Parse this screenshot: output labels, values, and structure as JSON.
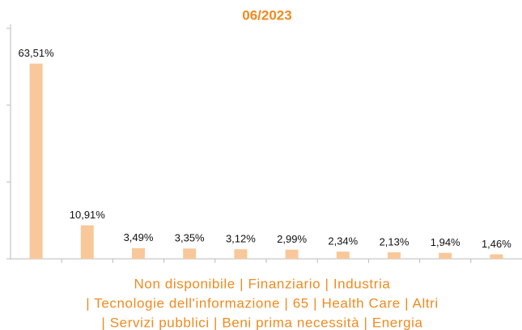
{
  "chart_data": {
    "type": "bar",
    "title": "06/2023",
    "categories": [
      null,
      null,
      null,
      null,
      null,
      null,
      null,
      null,
      null,
      null
    ],
    "values": [
      63.51,
      10.91,
      3.49,
      3.35,
      3.12,
      2.99,
      2.34,
      2.13,
      1.94,
      1.46
    ],
    "value_labels": [
      "63,51%",
      "10,91%",
      "3,49%",
      "3,35%",
      "3,12%",
      "2,99%",
      "2,34%",
      "2,13%",
      "1,94%",
      "1,46%"
    ],
    "color": "#f8c89a",
    "ylim": [
      0,
      75
    ],
    "yticks": [
      0,
      25,
      50,
      75
    ],
    "xlabel": [
      "Non disponibile | Finanziario | Industria",
      "| Tecnologie dell'informazione | 65 | Health Care | Altri",
      "| Servizi pubblici | Beni prima necessità | Energia"
    ]
  }
}
